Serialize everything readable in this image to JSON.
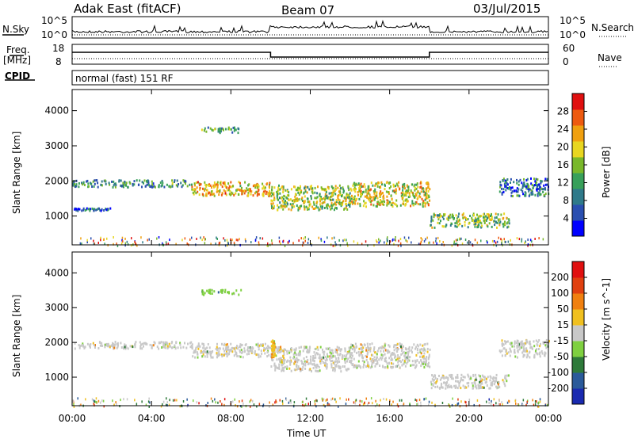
{
  "header": {
    "station": "Adak East (fitACF)",
    "beam": "Beam 07",
    "date": "03/Jul/2015"
  },
  "status_panels": {
    "nsky_label": "N.Sky",
    "nsky_ticks": [
      "10^5",
      "10^0"
    ],
    "nsearch_label": "N.Search",
    "nsearch_ticks": [
      "10^5",
      "10^0"
    ],
    "freq_label": "Freq.",
    "freq_unit": "[MHz]",
    "freq_ticks": [
      "18",
      "8"
    ],
    "nave_label": "Nave",
    "nave_ticks": [
      "60",
      "0"
    ],
    "cpid_label": "CPID",
    "cpid_value": "normal (fast) 151 RF"
  },
  "chart_data": [
    {
      "type": "heatmap",
      "title": "",
      "ylabel": "Slant Range [km]",
      "xlabel": "",
      "x_ticks": [
        "00:00",
        "04:00",
        "08:00",
        "12:00",
        "16:00",
        "20:00",
        "00:00"
      ],
      "x_range_hours": [
        0,
        24
      ],
      "y_ticks": [
        4000,
        3000,
        2000,
        1000
      ],
      "ylim": [
        180,
        4600
      ],
      "colorbar_label": "Power [dB]",
      "colorbar_ticks": [
        28,
        24,
        20,
        16,
        12,
        8,
        4
      ],
      "colorbar_range": [
        0,
        30
      ],
      "colors": [
        "#0000ff",
        "#2a4fb0",
        "#2f7a8a",
        "#38a05a",
        "#79b82a",
        "#e8d620",
        "#f0a010",
        "#ee5a10",
        "#e01010"
      ],
      "echo_bands": [
        {
          "start_hour": 0.0,
          "end_hour": 6.0,
          "range_km": [
            1850,
            2050
          ],
          "power_db": 10
        },
        {
          "start_hour": 6.0,
          "end_hour": 10.0,
          "range_km": [
            1600,
            2000
          ],
          "power_db": 20
        },
        {
          "start_hour": 10.0,
          "end_hour": 14.0,
          "range_km": [
            1200,
            1900
          ],
          "power_db": 16
        },
        {
          "start_hour": 14.0,
          "end_hour": 18.0,
          "range_km": [
            1300,
            2000
          ],
          "power_db": 18
        },
        {
          "start_hour": 18.0,
          "end_hour": 22.0,
          "range_km": [
            700,
            1100
          ],
          "power_db": 14
        },
        {
          "start_hour": 21.5,
          "end_hour": 24.0,
          "range_km": [
            1600,
            2100
          ],
          "power_db": 8
        },
        {
          "start_hour": 6.5,
          "end_hour": 8.5,
          "range_km": [
            3400,
            3550
          ],
          "power_db": 12
        },
        {
          "start_hour": 0.0,
          "end_hour": 2.0,
          "range_km": [
            1180,
            1250
          ],
          "power_db": 6
        }
      ]
    },
    {
      "type": "heatmap",
      "title": "",
      "ylabel": "Slant Range [km]",
      "xlabel": "Time UT",
      "x_ticks": [
        "00:00",
        "04:00",
        "08:00",
        "12:00",
        "16:00",
        "20:00",
        "00:00"
      ],
      "x_range_hours": [
        0,
        24
      ],
      "y_ticks": [
        4000,
        3000,
        2000,
        1000
      ],
      "ylim": [
        180,
        4600
      ],
      "colorbar_label": "Velocity [m s^-1]",
      "colorbar_ticks": [
        200,
        100,
        50,
        15,
        -15,
        -50,
        -100,
        -200
      ],
      "colorbar_range": [
        -250,
        250
      ],
      "colors": [
        "#1a2ab0",
        "#2a5a9a",
        "#2e7a3a",
        "#7fd040",
        "#c8c8c8",
        "#f0c020",
        "#f08010",
        "#e04010",
        "#e01010"
      ],
      "echo_bands": [
        {
          "start_hour": 0.0,
          "end_hour": 6.0,
          "range_km": [
            1850,
            2050
          ],
          "velocity": 0
        },
        {
          "start_hour": 6.0,
          "end_hour": 10.0,
          "range_km": [
            1600,
            2000
          ],
          "velocity": 0
        },
        {
          "start_hour": 10.0,
          "end_hour": 14.0,
          "range_km": [
            1200,
            1900
          ],
          "velocity": 0
        },
        {
          "start_hour": 14.0,
          "end_hour": 18.0,
          "range_km": [
            1300,
            2000
          ],
          "velocity": 0
        },
        {
          "start_hour": 18.0,
          "end_hour": 22.0,
          "range_km": [
            700,
            1100
          ],
          "velocity": 0
        },
        {
          "start_hour": 21.5,
          "end_hour": 24.0,
          "range_km": [
            1600,
            2100
          ],
          "velocity": 0
        },
        {
          "start_hour": 6.5,
          "end_hour": 8.5,
          "range_km": [
            3400,
            3550
          ],
          "velocity": -60
        },
        {
          "start_hour": 10.0,
          "end_hour": 10.2,
          "range_km": [
            1600,
            2100
          ],
          "velocity": 40
        }
      ]
    }
  ]
}
